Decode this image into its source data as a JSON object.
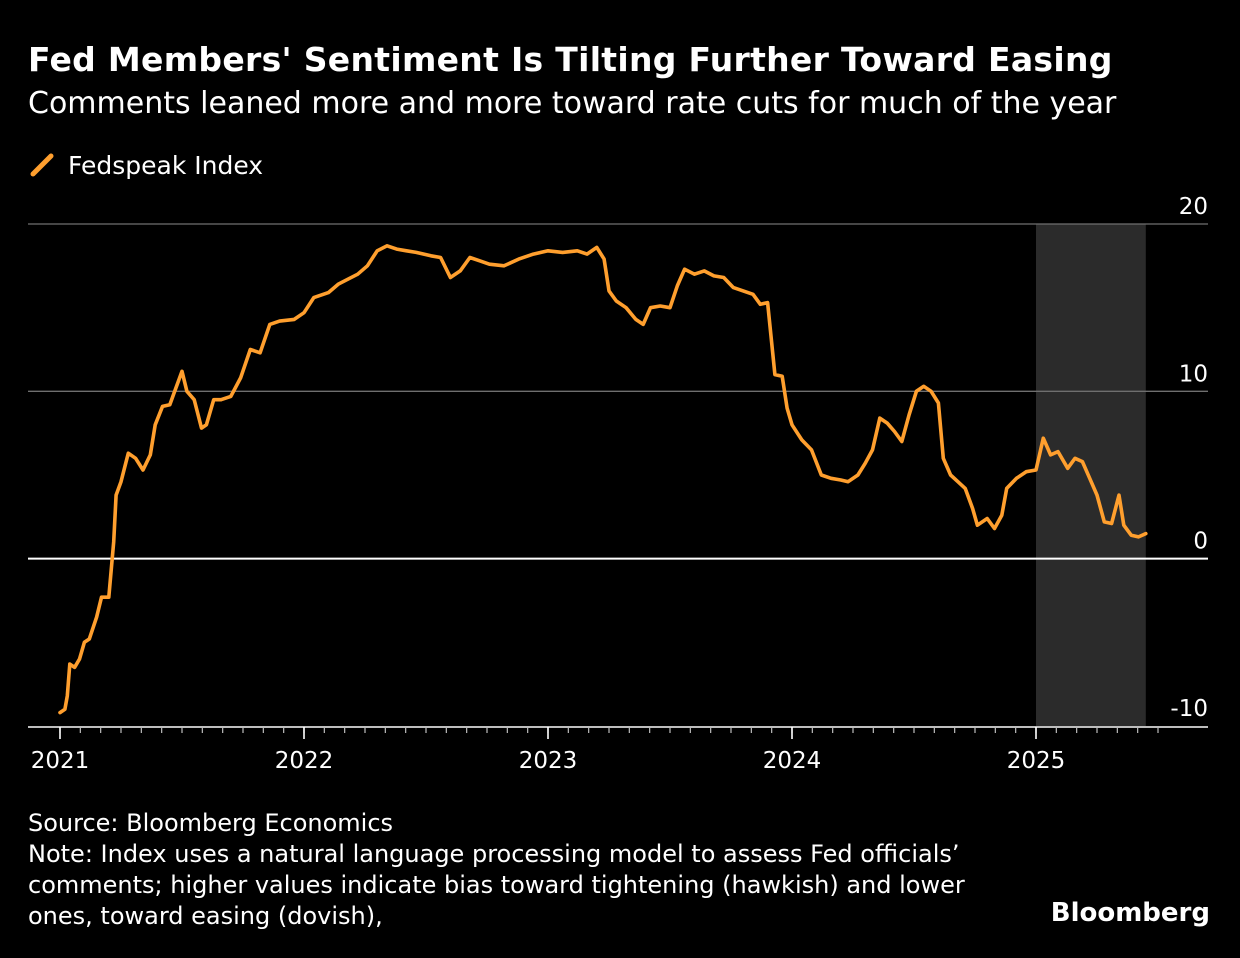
{
  "title": "Fed Members' Sentiment Is Tilting Further Toward Easing",
  "subtitle": "Comments leaned more and more toward rate cuts for much of the year",
  "legend": {
    "label": "Fedspeak Index",
    "color": "#ff9f2e",
    "icon": "slash-line-icon"
  },
  "source": "Source: Bloomberg Economics",
  "note_lines": [
    "Note: Index uses a natural language processing model to assess Fed officials’",
    "comments; higher values indicate bias toward tightening (hawkish) and lower",
    "ones, toward easing (dovish),"
  ],
  "brand": "Bloomberg",
  "chart_data": {
    "type": "line",
    "title": "Fed Members' Sentiment Is Tilting Further Toward Easing",
    "subtitle": "Comments leaned more and more toward rate cuts for much of the year",
    "xlabel": "",
    "ylabel": "",
    "xlim": [
      2021.0,
      2025.7
    ],
    "ylim": [
      -10,
      20
    ],
    "y_ticks": [
      20,
      10,
      0,
      -10
    ],
    "y_tick_labels": [
      "20",
      "10",
      "0",
      "-10"
    ],
    "x_ticks": [
      2021,
      2022,
      2023,
      2024,
      2025
    ],
    "x_tick_labels": [
      "2021",
      "2022",
      "2023",
      "2024",
      "2025"
    ],
    "shaded_region": {
      "x_start": 2025.0,
      "x_end": 2025.45,
      "color": "#2b2b2b"
    },
    "grid": "horizontal",
    "series": [
      {
        "name": "Fedspeak Index",
        "color": "#ff9f2e",
        "points": [
          [
            2021.0,
            -9.2
          ],
          [
            2021.02,
            -9.0
          ],
          [
            2021.03,
            -8.2
          ],
          [
            2021.04,
            -6.3
          ],
          [
            2021.06,
            -6.5
          ],
          [
            2021.08,
            -6.0
          ],
          [
            2021.1,
            -5.0
          ],
          [
            2021.12,
            -4.8
          ],
          [
            2021.15,
            -3.5
          ],
          [
            2021.17,
            -2.3
          ],
          [
            2021.2,
            -2.3
          ],
          [
            2021.22,
            1.0
          ],
          [
            2021.23,
            3.8
          ],
          [
            2021.25,
            4.6
          ],
          [
            2021.28,
            6.3
          ],
          [
            2021.31,
            6.0
          ],
          [
            2021.34,
            5.3
          ],
          [
            2021.37,
            6.2
          ],
          [
            2021.39,
            8.0
          ],
          [
            2021.42,
            9.1
          ],
          [
            2021.45,
            9.2
          ],
          [
            2021.47,
            10.0
          ],
          [
            2021.5,
            11.2
          ],
          [
            2021.52,
            10.0
          ],
          [
            2021.55,
            9.5
          ],
          [
            2021.58,
            7.8
          ],
          [
            2021.6,
            8.0
          ],
          [
            2021.63,
            9.5
          ],
          [
            2021.66,
            9.5
          ],
          [
            2021.7,
            9.7
          ],
          [
            2021.74,
            10.8
          ],
          [
            2021.78,
            12.5
          ],
          [
            2021.82,
            12.3
          ],
          [
            2021.86,
            14.0
          ],
          [
            2021.9,
            14.2
          ],
          [
            2021.96,
            14.3
          ],
          [
            2022.0,
            14.7
          ],
          [
            2022.04,
            15.6
          ],
          [
            2022.1,
            15.9
          ],
          [
            2022.14,
            16.4
          ],
          [
            2022.18,
            16.7
          ],
          [
            2022.22,
            17.0
          ],
          [
            2022.26,
            17.5
          ],
          [
            2022.3,
            18.4
          ],
          [
            2022.34,
            18.7
          ],
          [
            2022.38,
            18.5
          ],
          [
            2022.42,
            18.4
          ],
          [
            2022.46,
            18.3
          ],
          [
            2022.52,
            18.1
          ],
          [
            2022.56,
            18.0
          ],
          [
            2022.6,
            16.8
          ],
          [
            2022.64,
            17.2
          ],
          [
            2022.68,
            18.0
          ],
          [
            2022.72,
            17.8
          ],
          [
            2022.76,
            17.6
          ],
          [
            2022.82,
            17.5
          ],
          [
            2022.88,
            17.9
          ],
          [
            2022.94,
            18.2
          ],
          [
            2023.0,
            18.4
          ],
          [
            2023.06,
            18.3
          ],
          [
            2023.12,
            18.4
          ],
          [
            2023.16,
            18.2
          ],
          [
            2023.2,
            18.6
          ],
          [
            2023.23,
            17.9
          ],
          [
            2023.25,
            16.0
          ],
          [
            2023.28,
            15.4
          ],
          [
            2023.32,
            15.0
          ],
          [
            2023.36,
            14.3
          ],
          [
            2023.39,
            14.0
          ],
          [
            2023.42,
            15.0
          ],
          [
            2023.46,
            15.1
          ],
          [
            2023.5,
            15.0
          ],
          [
            2023.53,
            16.3
          ],
          [
            2023.56,
            17.3
          ],
          [
            2023.6,
            17.0
          ],
          [
            2023.64,
            17.2
          ],
          [
            2023.68,
            16.9
          ],
          [
            2023.72,
            16.8
          ],
          [
            2023.76,
            16.2
          ],
          [
            2023.8,
            16.0
          ],
          [
            2023.84,
            15.8
          ],
          [
            2023.87,
            15.2
          ],
          [
            2023.9,
            15.3
          ],
          [
            2023.93,
            11.0
          ],
          [
            2023.96,
            10.9
          ],
          [
            2023.98,
            9.0
          ],
          [
            2024.0,
            8.0
          ],
          [
            2024.04,
            7.1
          ],
          [
            2024.08,
            6.5
          ],
          [
            2024.12,
            5.0
          ],
          [
            2024.16,
            4.8
          ],
          [
            2024.2,
            4.7
          ],
          [
            2024.23,
            4.6
          ],
          [
            2024.27,
            5.0
          ],
          [
            2024.3,
            5.7
          ],
          [
            2024.33,
            6.5
          ],
          [
            2024.36,
            8.4
          ],
          [
            2024.39,
            8.1
          ],
          [
            2024.42,
            7.6
          ],
          [
            2024.45,
            7.0
          ],
          [
            2024.48,
            8.6
          ],
          [
            2024.51,
            10.0
          ],
          [
            2024.54,
            10.3
          ],
          [
            2024.57,
            10.0
          ],
          [
            2024.6,
            9.3
          ],
          [
            2024.62,
            6.0
          ],
          [
            2024.65,
            5.0
          ],
          [
            2024.68,
            4.6
          ],
          [
            2024.71,
            4.2
          ],
          [
            2024.74,
            3.0
          ],
          [
            2024.76,
            2.0
          ],
          [
            2024.8,
            2.4
          ],
          [
            2024.83,
            1.8
          ],
          [
            2024.86,
            2.6
          ],
          [
            2024.88,
            4.2
          ],
          [
            2024.92,
            4.8
          ],
          [
            2024.96,
            5.2
          ],
          [
            2025.0,
            5.3
          ],
          [
            2025.03,
            7.2
          ],
          [
            2025.06,
            6.2
          ],
          [
            2025.09,
            6.4
          ],
          [
            2025.13,
            5.4
          ],
          [
            2025.16,
            6.0
          ],
          [
            2025.19,
            5.8
          ],
          [
            2025.22,
            4.8
          ],
          [
            2025.25,
            3.8
          ],
          [
            2025.28,
            2.2
          ],
          [
            2025.31,
            2.1
          ],
          [
            2025.34,
            3.8
          ],
          [
            2025.36,
            2.0
          ],
          [
            2025.39,
            1.4
          ],
          [
            2025.42,
            1.3
          ],
          [
            2025.45,
            1.5
          ]
        ]
      }
    ]
  }
}
